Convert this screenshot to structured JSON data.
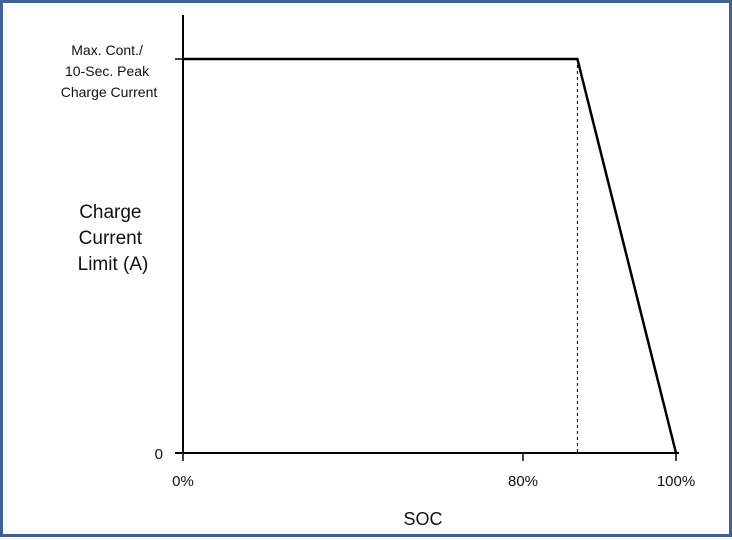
{
  "chart_data": {
    "type": "line",
    "ylabel_lines": [
      "Charge",
      "Current",
      "Limit (A)"
    ],
    "xlabel": "SOC",
    "x_ticks": [
      "0%",
      "80%",
      "100%"
    ],
    "y_ticks": [
      "0"
    ],
    "y_top_label_lines": [
      "Max. Cont./",
      "10-Sec. Peak",
      "Charge Current"
    ],
    "x_range": [
      0,
      100
    ],
    "y_range": [
      0,
      1
    ],
    "series": [
      {
        "x": [
          0,
          80,
          100
        ],
        "y": [
          1,
          1,
          0
        ]
      }
    ],
    "reference_line": {
      "x": 80,
      "style": "dashed"
    },
    "grid": false
  },
  "colors": {
    "border": "#3f6390",
    "line": "#000000",
    "text": "#111111"
  }
}
